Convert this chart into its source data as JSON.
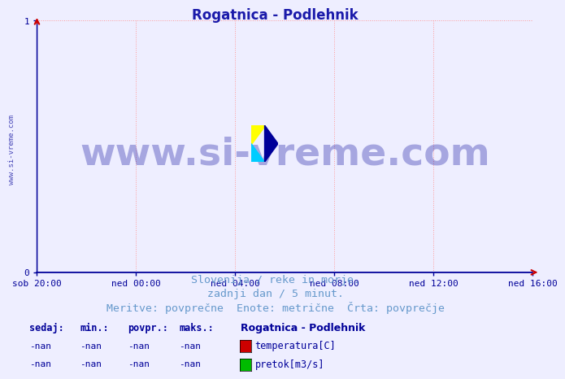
{
  "title": "Rogatnica - Podlehnik",
  "title_color": "#1a1aaa",
  "title_fontsize": 12,
  "bg_color": "#eeeeff",
  "plot_bg_color": "#eeeeff",
  "grid_color": "#ff9999",
  "grid_linestyle": ":",
  "xlim_labels": [
    "sob 20:00",
    "ned 00:00",
    "ned 04:00",
    "ned 08:00",
    "ned 12:00",
    "ned 16:00"
  ],
  "ylim": [
    0,
    1
  ],
  "yticks": [
    0,
    1
  ],
  "xlabel_color": "#000099",
  "ylabel_color": "#000099",
  "axis_color": "#000099",
  "watermark_text": "www.si-vreme.com",
  "watermark_color": "#000099",
  "watermark_fontsize": 34,
  "watermark_alpha": 0.3,
  "left_label": "www.si-vreme.com",
  "subtitle_line1": "Slovenija / reke in morje.",
  "subtitle_line2": "zadnji dan / 5 minut.",
  "subtitle_line3": "Meritve: povprečne  Enote: metrične  Črta: povprečje",
  "subtitle_color": "#6699cc",
  "subtitle_fontsize": 9.5,
  "legend_title": "Rogatnica - Podlehnik",
  "legend_title_fontsize": 9,
  "legend_color": "#000099",
  "table_headers": [
    "sedaj:",
    "min.:",
    "povpr.:",
    "maks.:"
  ],
  "table_rows": [
    [
      "-nan",
      "-nan",
      "-nan",
      "-nan"
    ],
    [
      "-nan",
      "-nan",
      "-nan",
      "-nan"
    ]
  ],
  "series": [
    {
      "label": "temperatura[C]",
      "color": "#cc0000"
    },
    {
      "label": "pretok[m3/s]",
      "color": "#00bb00"
    }
  ],
  "arrow_color": "#cc0000",
  "border_color": "#000099",
  "xaxis_color": "#000099",
  "yaxis_color": "#cc0000"
}
